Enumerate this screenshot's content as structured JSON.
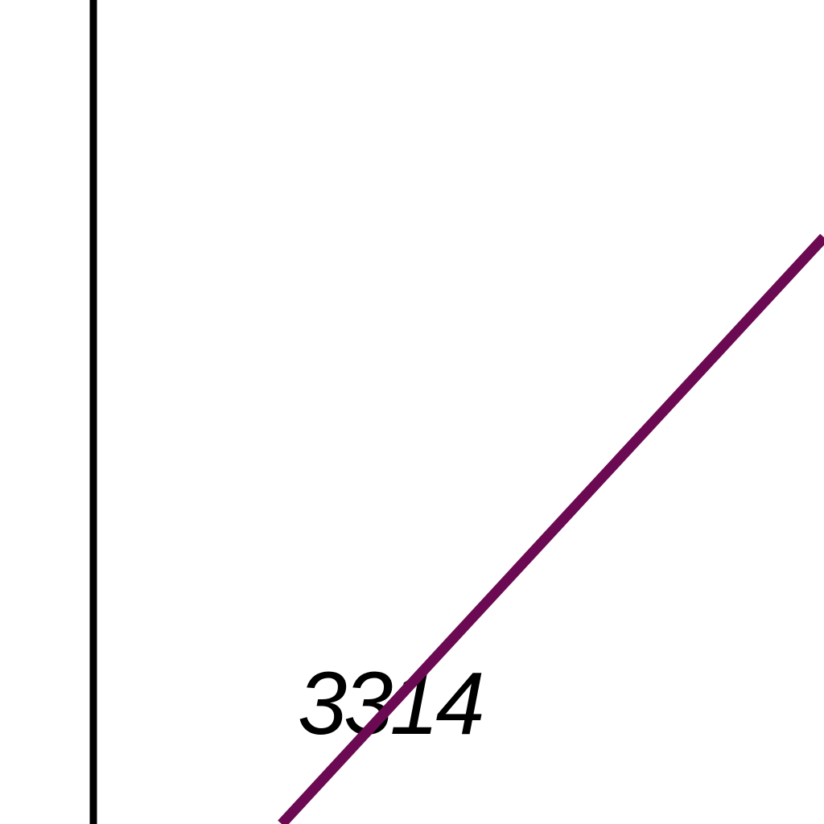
{
  "map": {
    "background_color": "#ffffff",
    "boundary_line": {
      "color": "#000000"
    },
    "route_line": {
      "color": "#6b0a52"
    },
    "feature_label": {
      "text": "3314",
      "color": "#000000"
    }
  }
}
